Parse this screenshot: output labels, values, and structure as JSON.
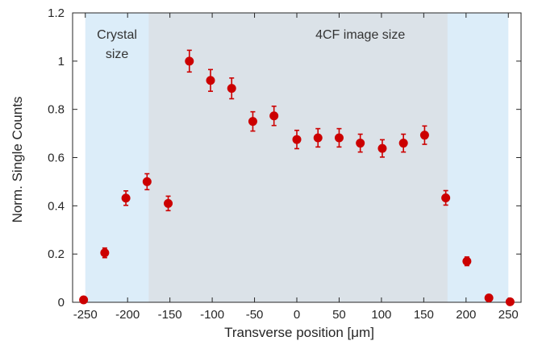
{
  "chart_data": {
    "type": "scatter",
    "xlabel": "Transverse position [μm]",
    "ylabel": "Norm. Single Counts",
    "xlim": [
      -265,
      265
    ],
    "ylim": [
      0,
      1.2
    ],
    "x_ticks": [
      -250,
      -200,
      -150,
      -100,
      -50,
      0,
      50,
      100,
      150,
      200,
      250
    ],
    "y_ticks": [
      0,
      0.2,
      0.4,
      0.6,
      0.8,
      1,
      1.2
    ],
    "x_tick_labels": [
      "-250",
      "-200",
      "-150",
      "-100",
      "-50",
      "0",
      "50",
      "100",
      "150",
      "200",
      "250"
    ],
    "y_tick_labels": [
      "0",
      "0.2",
      "0.4",
      "0.6",
      "0.8",
      "1",
      "1.2"
    ],
    "grid": false,
    "regions": [
      {
        "label": "Crystal size",
        "label_lines": [
          "Crystal",
          "size"
        ],
        "x_range": [
          -250,
          250
        ],
        "color": "#dcedf9"
      },
      {
        "label": "4CF image size",
        "label_lines": [
          "4CF image size"
        ],
        "x_range": [
          -175,
          178
        ],
        "color": "#dbe2e8"
      }
    ],
    "series": [
      {
        "color": "#cc0000",
        "points": [
          {
            "x": -252,
            "y": 0.01,
            "err": 0
          },
          {
            "x": -227,
            "y": 0.205,
            "err": 0.02
          },
          {
            "x": -202,
            "y": 0.432,
            "err": 0.03
          },
          {
            "x": -177,
            "y": 0.5,
            "err": 0.033
          },
          {
            "x": -152,
            "y": 0.41,
            "err": 0.03
          },
          {
            "x": -127,
            "y": 1.0,
            "err": 0.045
          },
          {
            "x": -102,
            "y": 0.92,
            "err": 0.045
          },
          {
            "x": -77,
            "y": 0.887,
            "err": 0.043
          },
          {
            "x": -52,
            "y": 0.75,
            "err": 0.04
          },
          {
            "x": -27,
            "y": 0.773,
            "err": 0.04
          },
          {
            "x": 0,
            "y": 0.675,
            "err": 0.038
          },
          {
            "x": 25,
            "y": 0.682,
            "err": 0.038
          },
          {
            "x": 50,
            "y": 0.682,
            "err": 0.038
          },
          {
            "x": 75,
            "y": 0.66,
            "err": 0.037
          },
          {
            "x": 101,
            "y": 0.638,
            "err": 0.036
          },
          {
            "x": 126,
            "y": 0.66,
            "err": 0.037
          },
          {
            "x": 151,
            "y": 0.693,
            "err": 0.038
          },
          {
            "x": 176,
            "y": 0.433,
            "err": 0.03
          },
          {
            "x": 201,
            "y": 0.17,
            "err": 0.018
          },
          {
            "x": 227,
            "y": 0.018,
            "err": 0.005
          },
          {
            "x": 252,
            "y": 0.002,
            "err": 0
          }
        ]
      }
    ]
  }
}
